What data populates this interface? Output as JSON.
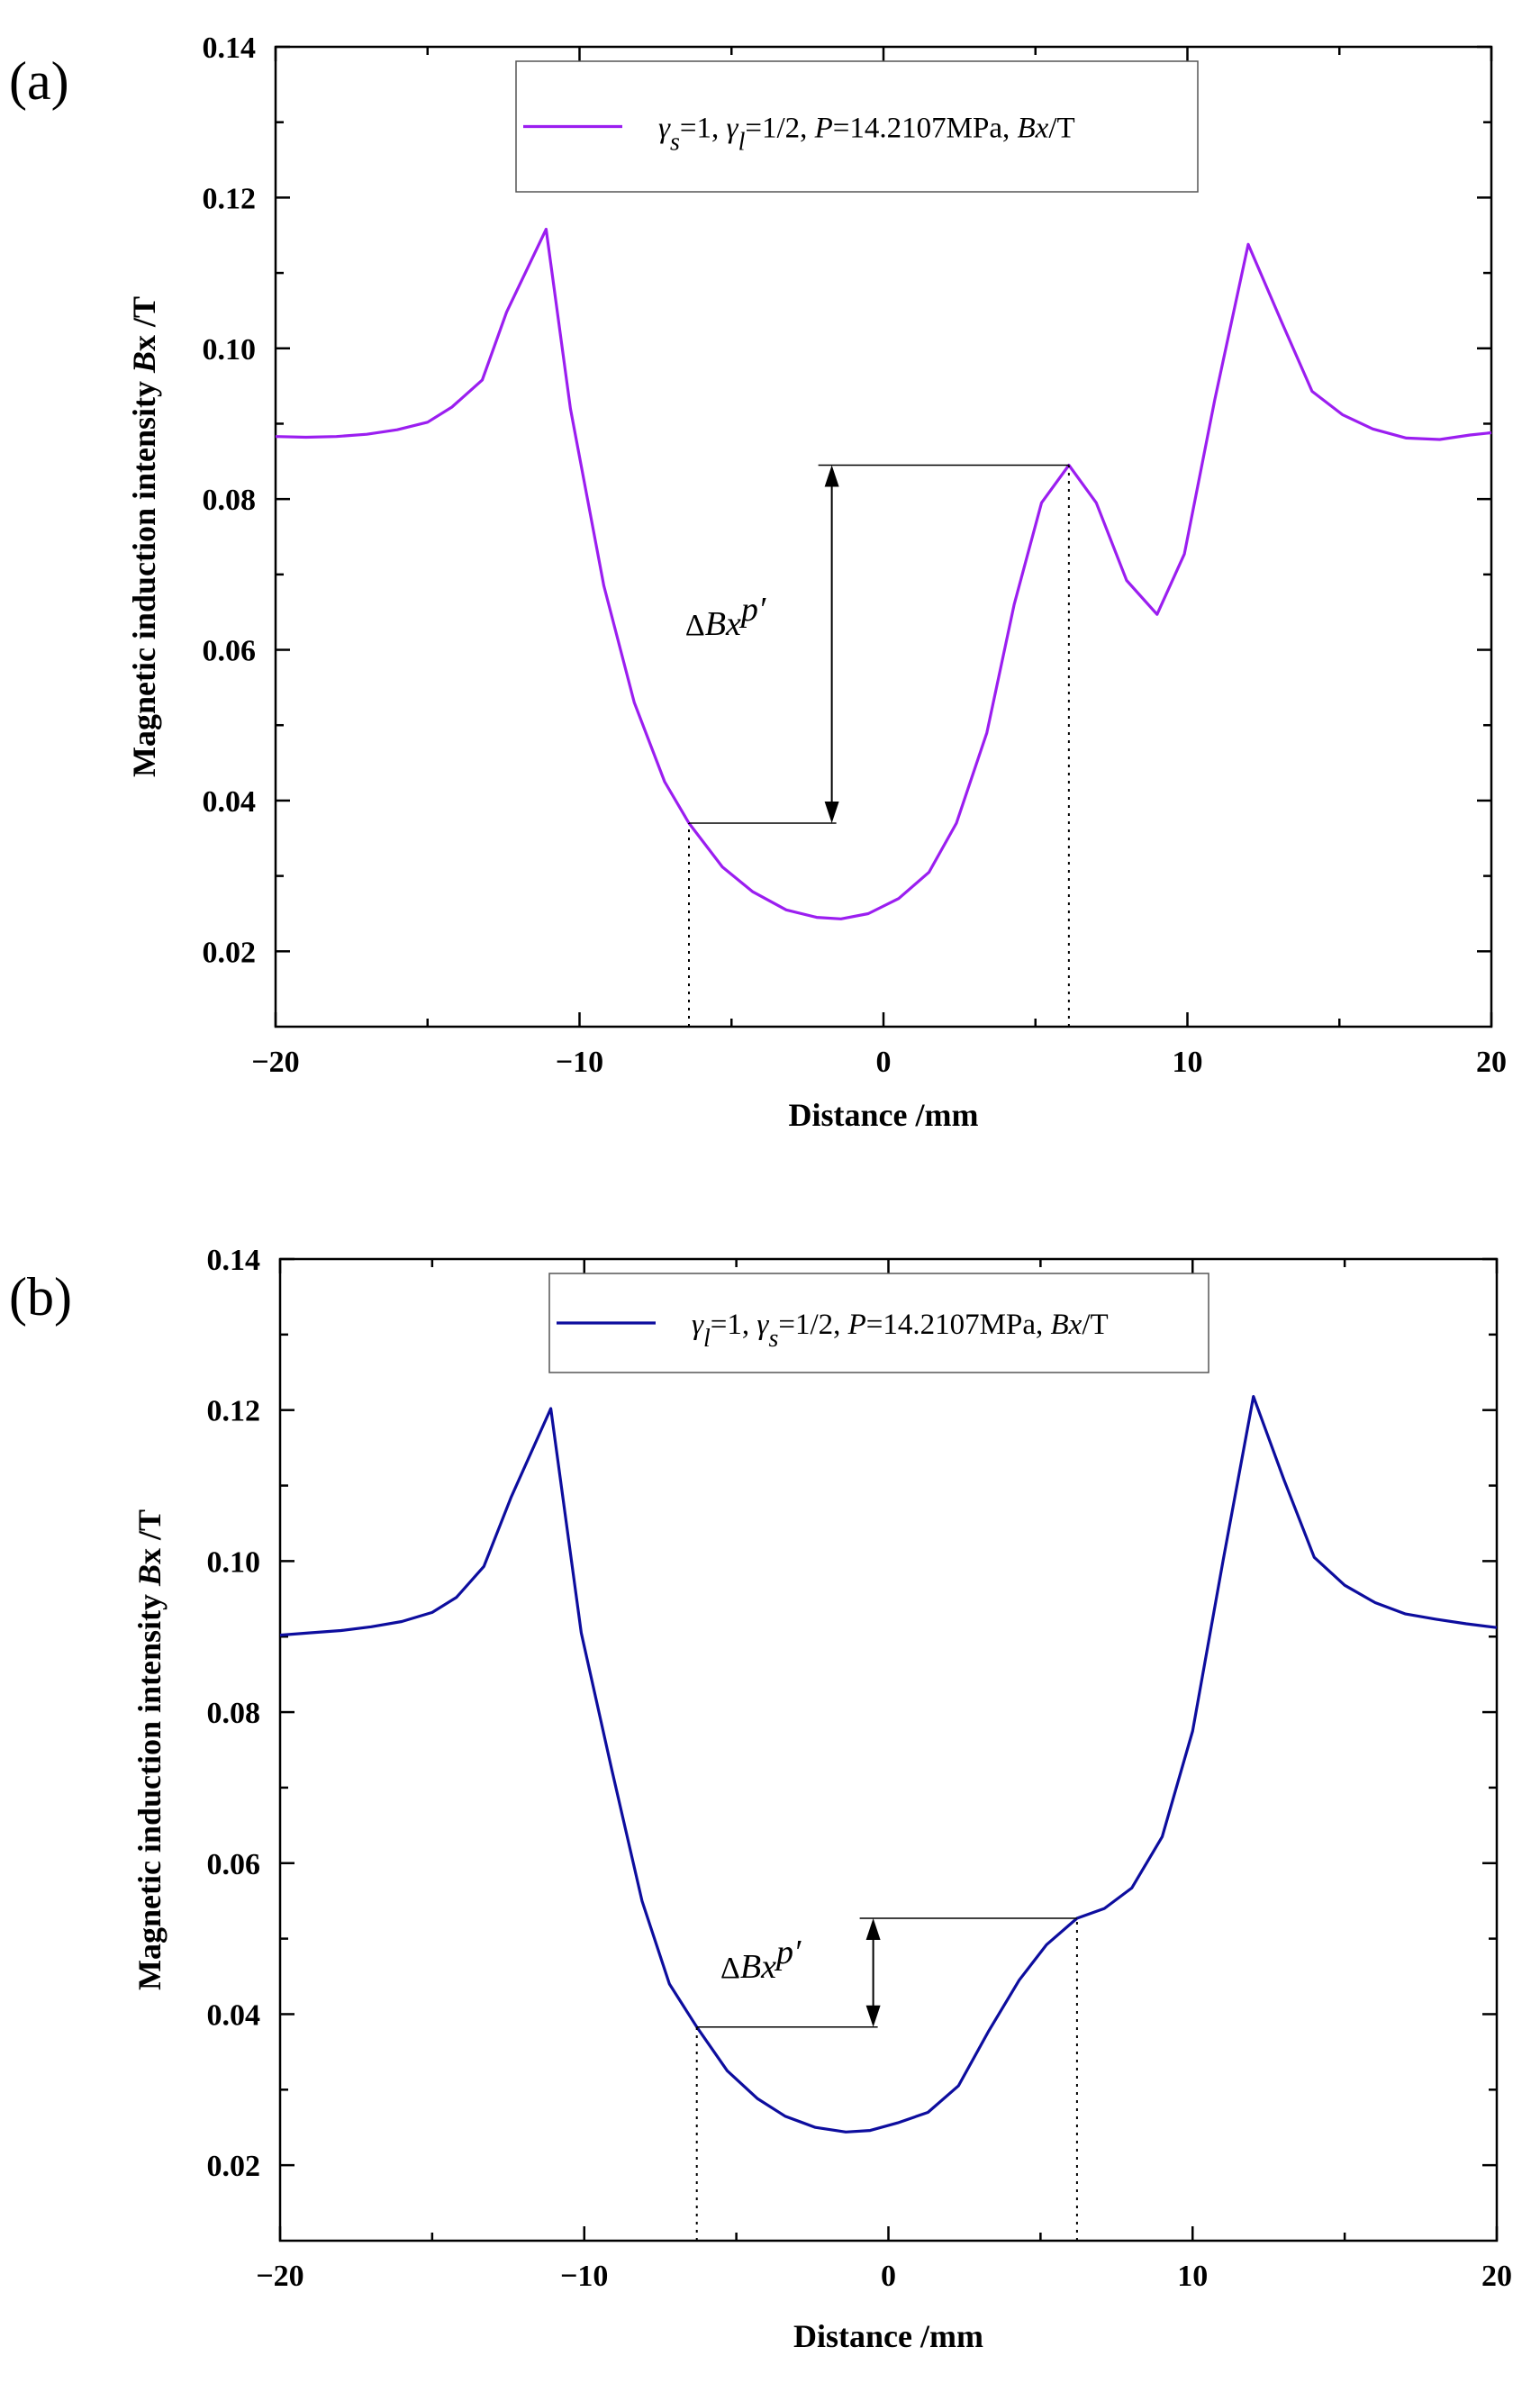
{
  "chart_data": [
    {
      "type": "line",
      "panel_label": "(a)",
      "title": "",
      "xlabel": "Distance /mm",
      "ylabel": "Magnetic induction intensity Bx /T",
      "xlim": [
        -20,
        20
      ],
      "ylim": [
        0.01,
        0.14
      ],
      "xticks": [
        -20,
        -10,
        0,
        10,
        20
      ],
      "xtick_labels": [
        "−20",
        "−10",
        "0",
        "10",
        "20"
      ],
      "yticks": [
        0.02,
        0.04,
        0.06,
        0.08,
        0.1,
        0.12,
        0.14
      ],
      "ytick_labels": [
        "0.02",
        "0.04",
        "0.06",
        "0.08",
        "0.10",
        "0.12",
        "0.14"
      ],
      "grid": false,
      "legend_position": "top-center",
      "legend": {
        "gamma1_sub": "s",
        "eq1": "=1, ",
        "gamma2_sub": "l",
        "eq2": "=1/2, ",
        "p_symbol": "P",
        "p_value": "=14.2107MPa, ",
        "bx_symbol": "Bx",
        "bx_unit": "/T"
      },
      "annotation": {
        "label_prefix": "Δ",
        "label_main": "Bx",
        "label_sup": "p′",
        "x_low": -6.4,
        "y_low": 0.037,
        "x_high": 6.1,
        "y_high": 0.0845,
        "arrow_x": -1.7,
        "label_x": -5.2,
        "label_y": 0.062
      },
      "series": [
        {
          "name": "γs=1, γl=1/2, P=14.2107MPa, Bx/T",
          "color": "#9b1ef0",
          "x": [
            -20,
            -19,
            -18,
            -17,
            -16,
            -15,
            -14.2,
            -13.2,
            -12.4,
            -11.1,
            -10.3,
            -9.2,
            -8.2,
            -7.2,
            -6.4,
            -5.3,
            -4.3,
            -3.2,
            -2.2,
            -1.4,
            -0.5,
            0.5,
            1.5,
            2.4,
            3.4,
            4.3,
            5.2,
            6.1,
            7.0,
            8.0,
            9.0,
            9.9,
            10.9,
            12.0,
            13.1,
            14.1,
            15.1,
            16.1,
            17.2,
            18.3,
            19.3,
            20
          ],
          "y": [
            0.0883,
            0.0882,
            0.0883,
            0.0886,
            0.0892,
            0.0902,
            0.0922,
            0.0958,
            0.1048,
            0.1158,
            0.092,
            0.0685,
            0.053,
            0.0425,
            0.037,
            0.0312,
            0.0279,
            0.0255,
            0.0245,
            0.0243,
            0.025,
            0.027,
            0.0305,
            0.037,
            0.049,
            0.066,
            0.0795,
            0.0845,
            0.0795,
            0.0692,
            0.0647,
            0.0727,
            0.0932,
            0.1138,
            0.1035,
            0.0943,
            0.0912,
            0.0893,
            0.0881,
            0.0879,
            0.0885,
            0.0888
          ]
        }
      ]
    },
    {
      "type": "line",
      "panel_label": "(b)",
      "title": "",
      "xlabel": "Distance /mm",
      "ylabel": "Magnetic induction intensity Bx /T",
      "xlim": [
        -20,
        20
      ],
      "ylim": [
        0.01,
        0.14
      ],
      "xticks": [
        -20,
        -10,
        0,
        10,
        20
      ],
      "xtick_labels": [
        "−20",
        "−10",
        "0",
        "10",
        "20"
      ],
      "yticks": [
        0.02,
        0.04,
        0.06,
        0.08,
        0.1,
        0.12,
        0.14
      ],
      "ytick_labels": [
        "0.02",
        "0.04",
        "0.06",
        "0.08",
        "0.10",
        "0.12",
        "0.14"
      ],
      "grid": false,
      "legend_position": "top-center",
      "legend": {
        "gamma1_sub": "l",
        "eq1": "=1, ",
        "gamma2_sub": "s",
        "eq2": "=1/2, ",
        "p_symbol": "P",
        "p_value": "=14.2107MPa, ",
        "bx_symbol": "Bx",
        "bx_unit": "/T"
      },
      "annotation": {
        "label_prefix": "Δ",
        "label_main": "Bx",
        "label_sup": "p′",
        "x_low": -6.3,
        "y_low": 0.0383,
        "x_high": 6.2,
        "y_high": 0.0527,
        "arrow_x": -0.5,
        "label_x": -4.2,
        "label_y": 0.0448
      },
      "series": [
        {
          "name": "γl=1, γs=1/2, P=14.2107MPa, Bx/T",
          "color": "#0d0d9e",
          "x": [
            -20,
            -19,
            -18,
            -17,
            -16,
            -15,
            -14.2,
            -13.3,
            -12.4,
            -11.1,
            -10.1,
            -9.1,
            -8.1,
            -7.2,
            -6.3,
            -5.3,
            -4.3,
            -3.4,
            -2.4,
            -1.4,
            -0.6,
            0.3,
            1.3,
            2.3,
            3.3,
            4.3,
            5.2,
            6.2,
            7.1,
            8.0,
            9.0,
            10.0,
            11.0,
            12.0,
            13.0,
            14.0,
            15.0,
            16.0,
            17.0,
            18.0,
            19.0,
            20
          ],
          "y": [
            0.0902,
            0.0905,
            0.0908,
            0.0913,
            0.092,
            0.0932,
            0.0952,
            0.0993,
            0.1085,
            0.1202,
            0.0905,
            0.0725,
            0.055,
            0.044,
            0.0383,
            0.0325,
            0.0288,
            0.0265,
            0.025,
            0.0244,
            0.0246,
            0.0256,
            0.027,
            0.0305,
            0.0378,
            0.0445,
            0.0492,
            0.0527,
            0.054,
            0.0567,
            0.0635,
            0.0775,
            0.1,
            0.1218,
            0.1108,
            0.1005,
            0.0968,
            0.0945,
            0.093,
            0.0923,
            0.0917,
            0.0912
          ]
        }
      ]
    }
  ]
}
